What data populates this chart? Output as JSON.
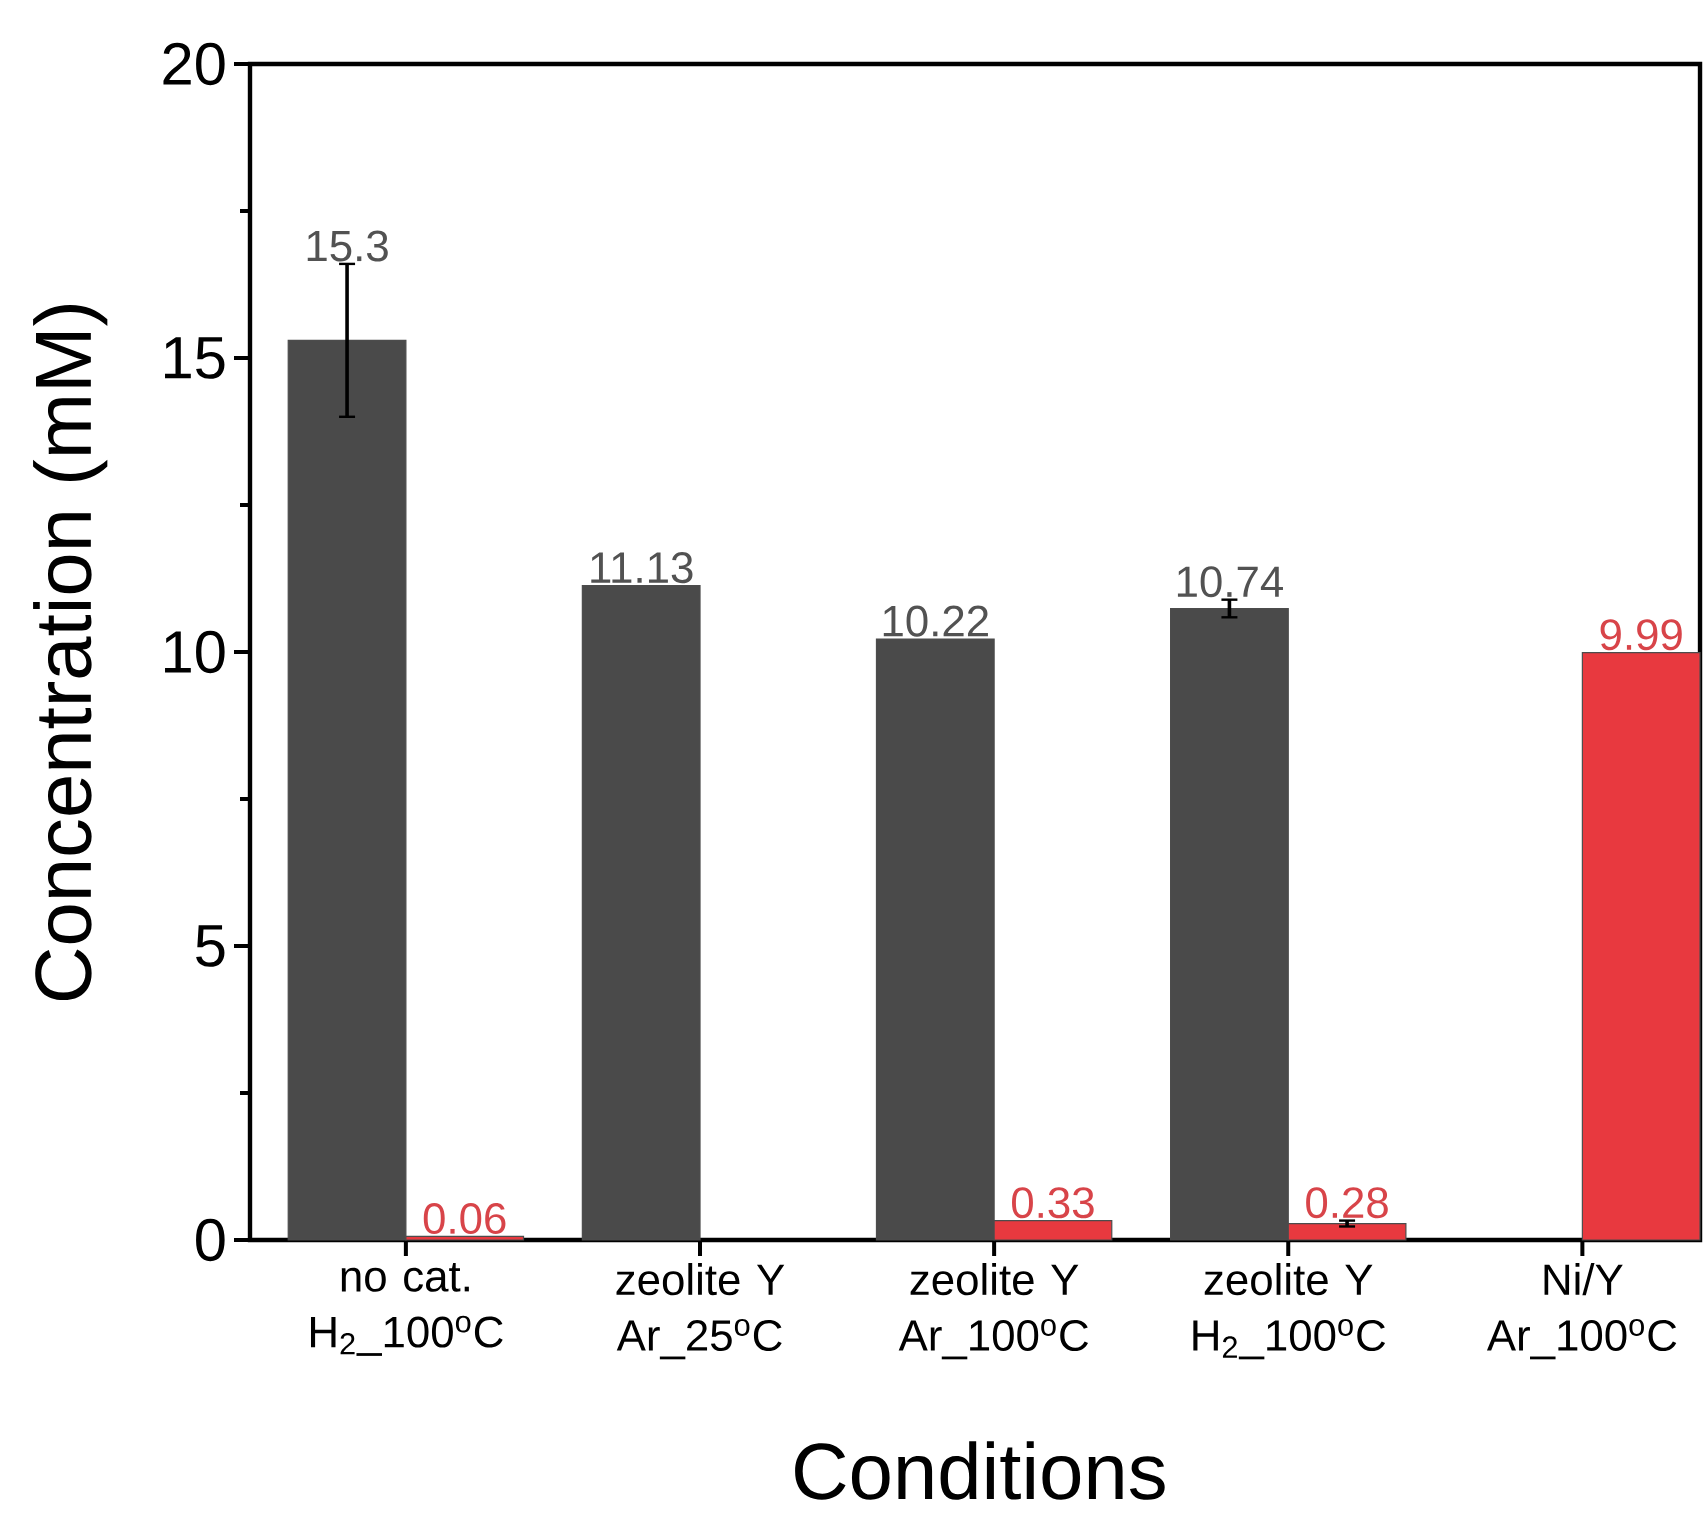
{
  "chart_data": {
    "type": "bar",
    "xlabel": "Conditions",
    "ylabel": "Concentration (mM)",
    "categories": [
      "no cat.\nH$_{2}$_100$^{o}$C",
      "zeolite Y\nAr_25$^{o}$C",
      "zeolite Y\nAr_100$^{o}$C",
      "zeolite Y\nH$_{2}$_100$^{o}$C",
      "Ni/Y\nAr_100$^{o}$C"
    ],
    "series": [
      {
        "color": "#4a4a4a",
        "values": [
          15.3,
          11.13,
          10.22,
          10.74,
          null
        ],
        "errors": [
          1.3,
          null,
          null,
          0.15,
          null
        ]
      },
      {
        "color": "#e8393f",
        "values": [
          0.06,
          null,
          0.33,
          0.28,
          9.99
        ],
        "errors": [
          null,
          null,
          null,
          0.05,
          null
        ]
      }
    ],
    "ylim": [
      0,
      20
    ],
    "yticks": [
      0,
      5,
      10,
      15,
      20
    ],
    "data_labels": true,
    "grid": false
  }
}
